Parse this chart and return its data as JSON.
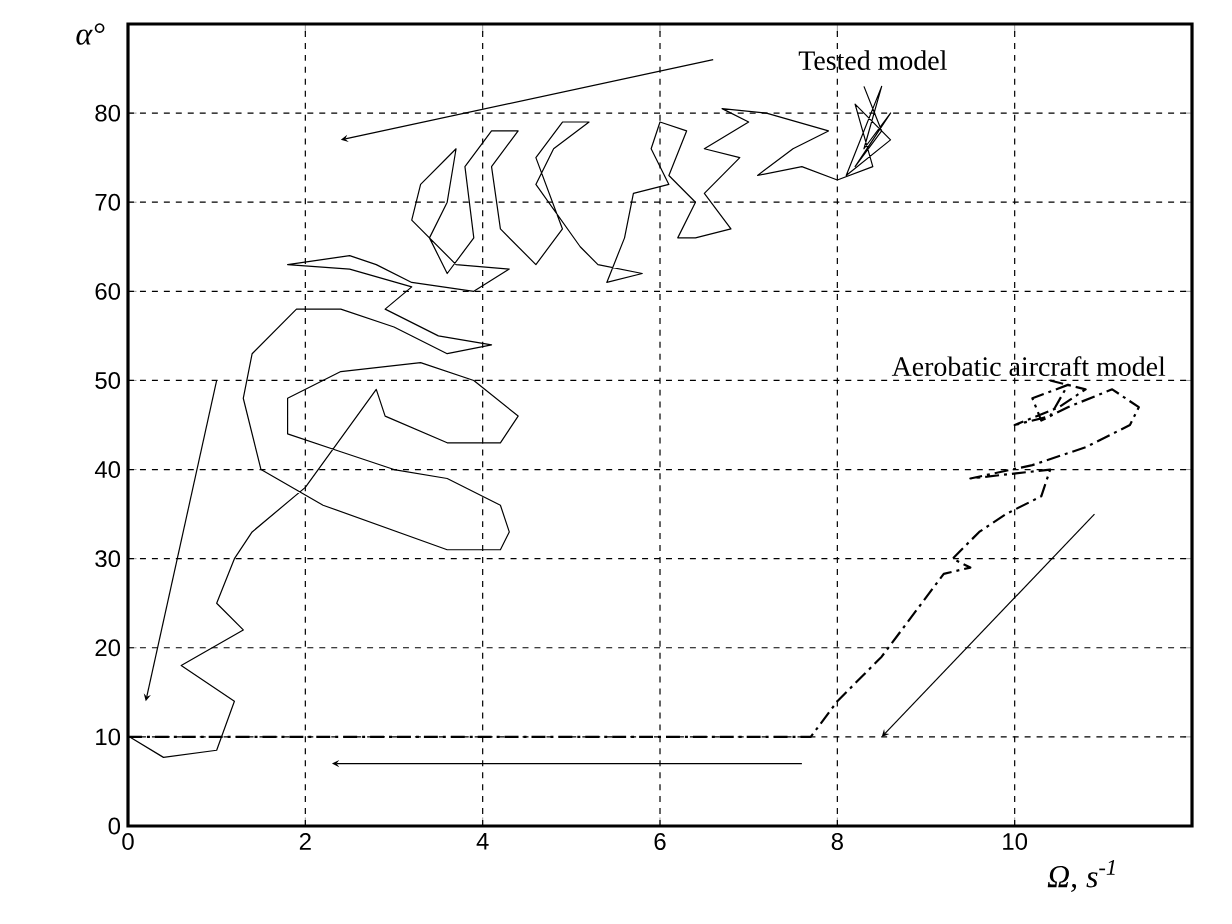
{
  "chart_data": {
    "type": "line",
    "xlabel": "Ω, s$^{-1}$",
    "ylabel": "α°",
    "xlim": [
      0,
      12
    ],
    "ylim": [
      0,
      90
    ],
    "xticks": [
      0,
      2,
      4,
      6,
      8,
      10
    ],
    "yticks": [
      0,
      10,
      20,
      30,
      40,
      50,
      60,
      70,
      80
    ],
    "grid": true,
    "marker": "none",
    "annotations": [
      {
        "text": "Tested model",
        "x": 8.4,
        "y": 83
      },
      {
        "text": "Aerobatic aircraft model",
        "x": 10.4,
        "y": 50
      }
    ],
    "series": [
      {
        "color": "#000000",
        "line_style": "solid",
        "x": [
          8.3,
          8.5,
          8.2,
          8.6,
          8.3,
          8.5,
          8.1,
          8.6,
          8.2,
          8.4,
          8.0,
          7.6,
          7.1,
          7.5,
          7.9,
          7.2,
          6.7,
          7.0,
          6.5,
          6.9,
          6.5,
          6.8,
          6.4,
          6.2,
          6.4,
          6.1,
          6.3,
          6.0,
          5.9,
          6.1,
          5.7,
          5.6,
          5.4,
          5.8,
          5.3,
          5.1,
          4.6,
          4.8,
          5.2,
          4.9,
          4.6,
          4.9,
          4.6,
          4.2,
          4.1,
          4.4,
          4.1,
          3.8,
          3.9,
          3.6,
          3.4,
          3.6,
          3.7,
          3.3,
          3.2,
          3.7,
          4.3,
          3.9,
          3.2,
          2.8,
          2.5,
          1.8,
          2.5,
          3.2,
          2.9,
          3.5,
          4.1,
          3.6,
          3.0,
          2.4,
          1.9,
          1.4,
          1.3,
          1.5,
          2.2,
          3.6,
          4.2,
          4.3,
          4.2,
          3.6,
          3.0,
          2.4,
          1.8,
          1.8,
          2.4,
          3.3,
          3.9,
          4.4,
          4.2,
          3.6,
          2.9,
          2.8,
          2.0,
          1.4,
          1.2,
          1.0,
          1.3,
          0.6,
          1.2,
          1.0,
          0.4,
          0.02
        ],
        "values": [
          83,
          78,
          74,
          80,
          76,
          83,
          73,
          77,
          81,
          74,
          72.5,
          74,
          73,
          76,
          78,
          80,
          80.5,
          79,
          76,
          75,
          71,
          67,
          66,
          66,
          70,
          73,
          78,
          79,
          76,
          72,
          71,
          66,
          61,
          62,
          63,
          65,
          72,
          76,
          79,
          79,
          75,
          67,
          63,
          67,
          74,
          78,
          78,
          74,
          66,
          62,
          66,
          70,
          76,
          72,
          68,
          63,
          62.5,
          60,
          61,
          63,
          64,
          63,
          62.5,
          60.5,
          58,
          55,
          54,
          53,
          56,
          58,
          58,
          53,
          48,
          40,
          36,
          31,
          31,
          33,
          36,
          39,
          40,
          42,
          44,
          48,
          51,
          52,
          50,
          46,
          43,
          43,
          46,
          49,
          38,
          33,
          30,
          25,
          22,
          18,
          14,
          8.5,
          7.7,
          10
        ]
      },
      {
        "color": "#000000",
        "line_style": "dashed",
        "x": [
          0,
          7.7,
          8.0,
          8.5,
          9.2,
          9.5,
          9.3,
          9.6,
          9.9,
          10.3,
          10.4,
          9.5,
          10.2,
          10.8,
          11.3,
          11.4,
          11.1,
          10.6,
          10.3,
          10.2,
          10.6,
          10.4,
          10.0,
          10.5,
          10.8,
          10.4
        ],
        "values": [
          10,
          10,
          14,
          19,
          28.3,
          29,
          30,
          33,
          35,
          37,
          40,
          39,
          40.5,
          42.5,
          45,
          47,
          49,
          47,
          45.5,
          48,
          49.5,
          46,
          45,
          47,
          49,
          50
        ]
      }
    ]
  }
}
